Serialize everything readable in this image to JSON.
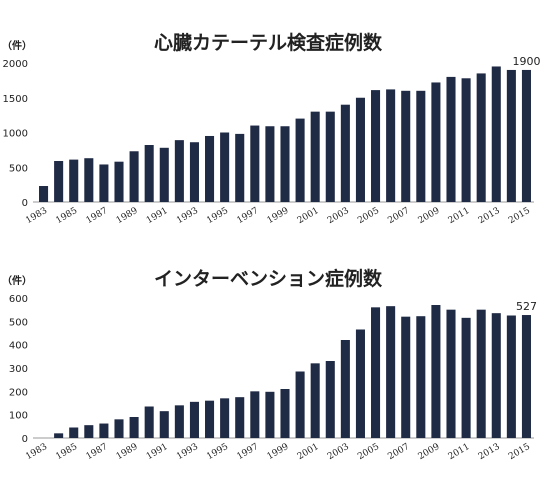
{
  "chart_data": [
    {
      "type": "bar",
      "title": "心臓カテーテル検査症例数",
      "unit_label": "（件）",
      "categories": [
        "1983",
        "1984",
        "1985",
        "1986",
        "1987",
        "1988",
        "1989",
        "1990",
        "1991",
        "1992",
        "1993",
        "1994",
        "1995",
        "1996",
        "1997",
        "1998",
        "1999",
        "2000",
        "2001",
        "2002",
        "2003",
        "2004",
        "2005",
        "2006",
        "2007",
        "2008",
        "2009",
        "2010",
        "2011",
        "2012",
        "2013",
        "2014",
        "2015"
      ],
      "x_tick_labels": [
        "1983",
        "1985",
        "1987",
        "1989",
        "1991",
        "1993",
        "1995",
        "1997",
        "1999",
        "2001",
        "2003",
        "2005",
        "2007",
        "2009",
        "2011",
        "2013",
        "2015"
      ],
      "values": [
        230,
        590,
        610,
        630,
        540,
        580,
        730,
        820,
        780,
        890,
        860,
        950,
        1000,
        980,
        1100,
        1090,
        1090,
        1200,
        1300,
        1300,
        1400,
        1500,
        1610,
        1620,
        1600,
        1600,
        1720,
        1800,
        1780,
        1850,
        1950,
        1900,
        1900
      ],
      "ylim": [
        0,
        2000
      ],
      "yticks": [
        0,
        500,
        1000,
        1500,
        2000
      ],
      "data_label": {
        "category": "2015",
        "text": "1900"
      },
      "bar_color": "#1f2a44",
      "grid": false
    },
    {
      "type": "bar",
      "title": "インターベンション症例数",
      "unit_label": "（件）",
      "categories": [
        "1983",
        "1984",
        "1985",
        "1986",
        "1987",
        "1988",
        "1989",
        "1990",
        "1991",
        "1992",
        "1993",
        "1994",
        "1995",
        "1996",
        "1997",
        "1998",
        "1999",
        "2000",
        "2001",
        "2002",
        "2003",
        "2004",
        "2005",
        "2006",
        "2007",
        "2008",
        "2009",
        "2010",
        "2011",
        "2012",
        "2013",
        "2014",
        "2015"
      ],
      "x_tick_labels": [
        "1983",
        "1985",
        "1987",
        "1989",
        "1991",
        "1993",
        "1995",
        "1997",
        "1999",
        "2001",
        "2003",
        "2005",
        "2007",
        "2009",
        "2011",
        "2013",
        "2015"
      ],
      "values": [
        0,
        20,
        45,
        55,
        62,
        80,
        90,
        135,
        115,
        140,
        155,
        160,
        170,
        175,
        200,
        198,
        210,
        285,
        320,
        330,
        420,
        465,
        560,
        565,
        520,
        522,
        570,
        550,
        515,
        550,
        535,
        525,
        527
      ],
      "ylim": [
        0,
        600
      ],
      "yticks": [
        0,
        100,
        200,
        300,
        400,
        500,
        600
      ],
      "data_label": {
        "category": "2015",
        "text": "527"
      },
      "bar_color": "#1f2a44",
      "grid": false
    }
  ]
}
